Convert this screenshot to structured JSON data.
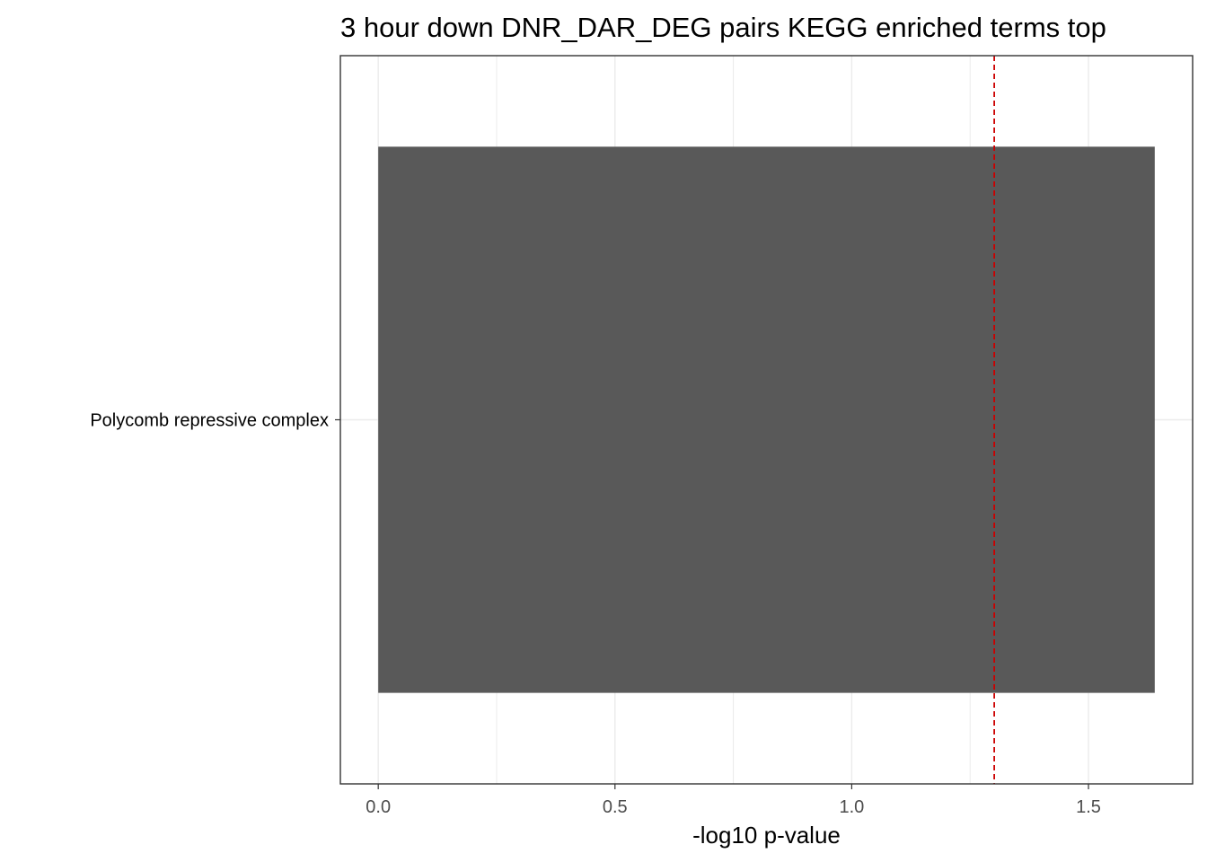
{
  "chart_data": {
    "type": "bar",
    "orientation": "horizontal",
    "title": "3 hour down DNR_DAR_DEG pairs  KEGG enriched terms top",
    "xlabel": "-log10 p-value",
    "ylabel": "",
    "categories": [
      "Polycomb repressive complex"
    ],
    "values": [
      1.64
    ],
    "xlim": [
      -0.08,
      1.72
    ],
    "x_ticks": [
      0.0,
      0.5,
      1.0,
      1.5
    ],
    "x_tick_labels": [
      "0.0",
      "0.5",
      "1.0",
      "1.5"
    ],
    "reference_line": {
      "x": 1.301,
      "style": "dashed",
      "color": "#cc0000"
    },
    "grid": true,
    "legend": "none",
    "colors": {
      "bar": "#595959",
      "grid": "#ebebeb",
      "panel_border": "#333333",
      "tick_text": "#4d4d4d"
    }
  }
}
